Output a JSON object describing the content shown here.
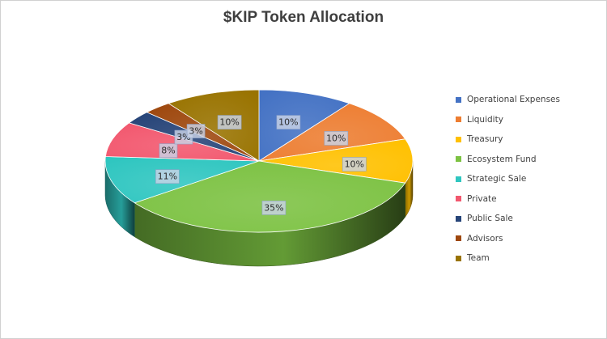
{
  "chart_data": {
    "type": "pie",
    "title": "$KIP Token Allocation",
    "legend_position": "right",
    "slices": [
      {
        "label": "Operational Expenses",
        "value": 10,
        "color": "#4472c4"
      },
      {
        "label": "Liquidity",
        "value": 10,
        "color": "#ed7d31"
      },
      {
        "label": "Treasury",
        "value": 10,
        "color": "#ffc000"
      },
      {
        "label": "Ecosystem Fund",
        "value": 35,
        "color": "#7cc242"
      },
      {
        "label": "Strategic Sale",
        "value": 11,
        "color": "#2fc6c0"
      },
      {
        "label": "Private",
        "value": 8,
        "color": "#f2576e"
      },
      {
        "label": "Public Sale",
        "value": 3,
        "color": "#264478"
      },
      {
        "label": "Advisors",
        "value": 3,
        "color": "#9e480e"
      },
      {
        "label": "Team",
        "value": 10,
        "color": "#997300"
      }
    ],
    "data_labels": [
      "10%",
      "10%",
      "10%",
      "35%",
      "11%",
      "8%",
      "3%",
      "3%",
      "10%"
    ]
  }
}
